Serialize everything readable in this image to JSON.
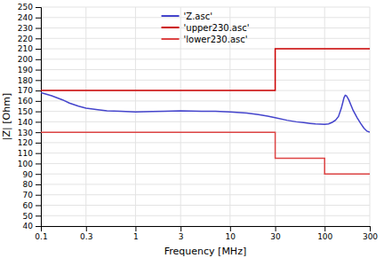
{
  "chart_data": {
    "type": "line",
    "xlabel": "Frequency [MHz]",
    "ylabel": "|Z| [Ohm]",
    "log": "x",
    "grid": true,
    "legend": "upper center",
    "xlim": [
      0.1,
      300
    ],
    "ylim": [
      40,
      250
    ],
    "xticks": [
      0.1,
      0.3,
      1,
      3,
      10,
      30,
      100,
      300
    ],
    "yticks": [
      40,
      50,
      60,
      70,
      80,
      90,
      100,
      110,
      120,
      130,
      140,
      150,
      160,
      170,
      180,
      190,
      200,
      210,
      220,
      230,
      240,
      250
    ],
    "series": [
      {
        "name": "'Z.asc'",
        "color": "#4444cc",
        "x": [
          0.1,
          0.13,
          0.17,
          0.2,
          0.25,
          0.3,
          0.4,
          0.5,
          0.7,
          1.0,
          1.5,
          2.0,
          3.0,
          5.0,
          7.0,
          10.0,
          15.0,
          20.0,
          25.0,
          30.0,
          40.0,
          50.0,
          60.0,
          70.0,
          80.0,
          90.0,
          100.0,
          110.0,
          120.0,
          130.0,
          140.0,
          150.0,
          155.0,
          160.0,
          165.0,
          170.0,
          180.0,
          200.0,
          220.0,
          240.0,
          260.0,
          280.0,
          300.0
        ],
        "values": [
          168,
          165,
          161,
          158,
          155,
          153,
          151.5,
          150.5,
          150.0,
          149.5,
          149.8,
          150.0,
          150.5,
          150.2,
          150.0,
          149.5,
          148.5,
          147.0,
          145.5,
          144.0,
          141.5,
          140.0,
          139.2,
          138.5,
          138.0,
          137.8,
          137.5,
          138.0,
          139.5,
          141.5,
          145.0,
          153.0,
          158.0,
          163.0,
          165.5,
          165.0,
          161.0,
          151.0,
          144.0,
          138.5,
          134.0,
          131.0,
          130.0
        ]
      },
      {
        "name": "'upper230.asc'",
        "color": "#cc0000",
        "x": [
          0.1,
          30,
          30,
          300
        ],
        "values": [
          170,
          170,
          210,
          210
        ]
      },
      {
        "name": "'lower230.asc'",
        "color": "#dd4444",
        "x": [
          0.1,
          30,
          30,
          100,
          100,
          300
        ],
        "values": [
          130,
          130,
          105,
          105,
          90,
          90
        ]
      }
    ]
  }
}
